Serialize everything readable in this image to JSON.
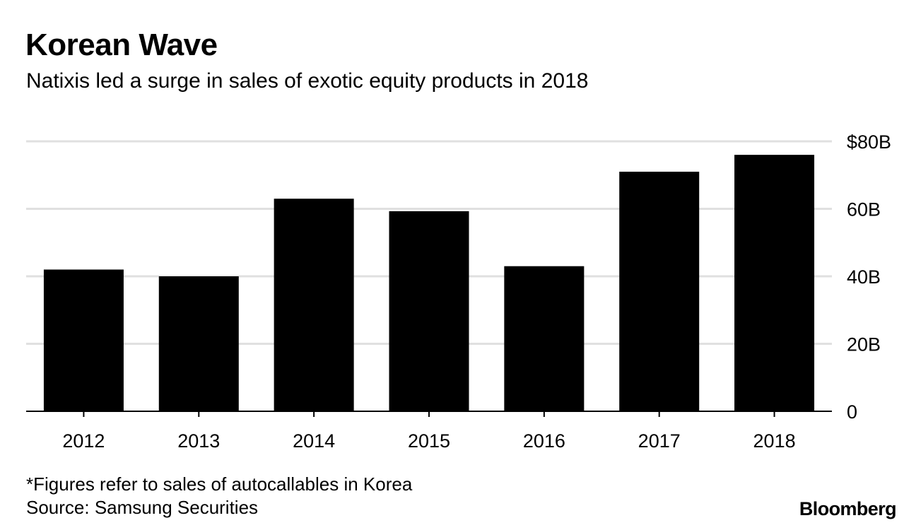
{
  "header": {
    "title": "Korean Wave",
    "subtitle": "Natixis led a surge in sales of exotic equity products in 2018"
  },
  "chart_data": {
    "type": "bar",
    "title": "Korean Wave",
    "subtitle": "Natixis led a surge in sales of exotic equity products in 2018",
    "categories": [
      "2012",
      "2013",
      "2014",
      "2015",
      "2016",
      "2017",
      "2018"
    ],
    "values": [
      42,
      40,
      63,
      59.3,
      43,
      71,
      76
    ],
    "unit": "billions",
    "ylim": [
      0,
      80
    ],
    "yticks": [
      0,
      20,
      40,
      60,
      80
    ],
    "ytick_labels": [
      "0",
      "20B",
      "40B",
      "60B",
      "$80B"
    ],
    "xlabel": "",
    "ylabel": "",
    "y_axis_side": "right",
    "grid": true,
    "bar_color": "#000000",
    "grid_color": "#e0e0e0"
  },
  "footer": {
    "note": "*Figures refer to sales of autocallables in Korea",
    "source": "Source: Samsung Securities",
    "brand": "Bloomberg"
  }
}
